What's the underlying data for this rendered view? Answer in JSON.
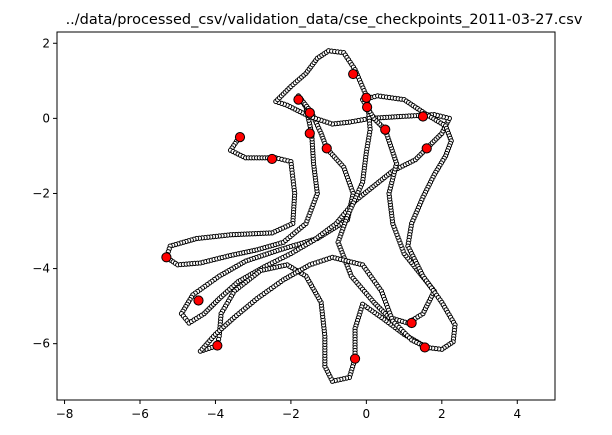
{
  "chart_data": {
    "type": "scatter",
    "title": "../data/processed_csv/validation_data/cse_checkpoints_2011-03-27.csv",
    "xlabel": "",
    "ylabel": "",
    "xlim": [
      -8.2,
      5.0
    ],
    "ylim": [
      -7.5,
      2.3
    ],
    "x_ticks": [
      -8,
      -6,
      -4,
      -2,
      0,
      2,
      4
    ],
    "y_ticks": [
      2,
      0,
      -2,
      -4,
      -6
    ],
    "grid": false,
    "colors": {
      "track_fill": "#ffffff",
      "track_edge": "#000000",
      "checkpoint_fill": "#ff0000",
      "checkpoint_edge": "#000000"
    },
    "track_waypoints": [
      [
        -3.4,
        -0.55
      ],
      [
        -3.6,
        -0.85
      ],
      [
        -3.2,
        -1.05
      ],
      [
        -2.4,
        -1.05
      ],
      [
        -2.0,
        -1.15
      ],
      [
        -1.9,
        -2.0
      ],
      [
        -1.95,
        -2.8
      ],
      [
        -2.5,
        -3.05
      ],
      [
        -3.6,
        -3.1
      ],
      [
        -4.5,
        -3.2
      ],
      [
        -5.2,
        -3.4
      ],
      [
        -5.3,
        -3.7
      ],
      [
        -5.0,
        -3.9
      ],
      [
        -4.4,
        -3.85
      ],
      [
        -3.6,
        -3.65
      ],
      [
        -2.9,
        -3.5
      ],
      [
        -2.2,
        -3.3
      ],
      [
        -1.6,
        -2.8
      ],
      [
        -1.3,
        -2.0
      ],
      [
        -1.4,
        -1.2
      ],
      [
        -1.45,
        -0.4
      ],
      [
        -1.6,
        0.3
      ],
      [
        -1.8,
        0.6
      ],
      [
        -1.45,
        0.15
      ],
      [
        -1.2,
        -0.4
      ],
      [
        -1.05,
        -0.8
      ],
      [
        -0.6,
        -1.3
      ],
      [
        -0.35,
        -2.0
      ],
      [
        -0.5,
        -2.7
      ],
      [
        -1.3,
        -3.2
      ],
      [
        -2.3,
        -3.5
      ],
      [
        -3.2,
        -3.8
      ],
      [
        -3.9,
        -4.2
      ],
      [
        -4.6,
        -4.7
      ],
      [
        -4.9,
        -5.2
      ],
      [
        -4.7,
        -5.45
      ],
      [
        -4.3,
        -5.2
      ],
      [
        -3.9,
        -4.8
      ],
      [
        -3.4,
        -4.35
      ],
      [
        -2.7,
        -3.95
      ],
      [
        -2.0,
        -3.6
      ],
      [
        -1.4,
        -3.25
      ],
      [
        -0.8,
        -2.8
      ],
      [
        -0.3,
        -2.2
      ],
      [
        0.2,
        -1.8
      ],
      [
        0.7,
        -1.4
      ],
      [
        1.3,
        -1.1
      ],
      [
        1.6,
        -0.8
      ],
      [
        2.0,
        -0.4
      ],
      [
        2.2,
        0.0
      ],
      [
        1.8,
        0.1
      ],
      [
        0.9,
        0.05
      ],
      [
        0.1,
        0.0
      ],
      [
        -0.45,
        -0.1
      ],
      [
        -0.9,
        -0.15
      ],
      [
        -1.5,
        0.05
      ],
      [
        -2.1,
        0.35
      ],
      [
        -2.4,
        0.45
      ],
      [
        -2.0,
        0.85
      ],
      [
        -1.6,
        1.2
      ],
      [
        -1.3,
        1.6
      ],
      [
        -1.0,
        1.8
      ],
      [
        -0.6,
        1.75
      ],
      [
        -0.3,
        1.3
      ],
      [
        0.0,
        0.6
      ],
      [
        0.05,
        0.3
      ],
      [
        0.1,
        -0.3
      ],
      [
        0.0,
        -0.9
      ],
      [
        -0.1,
        -1.7
      ],
      [
        -0.5,
        -2.6
      ],
      [
        -0.75,
        -3.3
      ],
      [
        -0.4,
        -4.2
      ],
      [
        0.2,
        -4.9
      ],
      [
        0.6,
        -5.3
      ],
      [
        1.1,
        -5.45
      ],
      [
        1.5,
        -5.2
      ],
      [
        1.8,
        -4.6
      ],
      [
        1.0,
        -3.6
      ],
      [
        0.7,
        -2.8
      ],
      [
        0.6,
        -2.0
      ],
      [
        0.8,
        -1.2
      ],
      [
        0.5,
        -0.3
      ],
      [
        0.2,
        0.0
      ],
      [
        -0.1,
        0.5
      ],
      [
        0.3,
        0.6
      ],
      [
        1.0,
        0.5
      ],
      [
        1.6,
        0.1
      ],
      [
        2.1,
        -0.2
      ],
      [
        2.25,
        -0.6
      ],
      [
        2.1,
        -1.0
      ],
      [
        1.8,
        -1.5
      ],
      [
        1.5,
        -2.1
      ],
      [
        1.2,
        -2.8
      ],
      [
        1.1,
        -3.4
      ],
      [
        1.5,
        -4.2
      ],
      [
        2.0,
        -4.9
      ],
      [
        2.35,
        -5.5
      ],
      [
        2.3,
        -5.95
      ],
      [
        2.0,
        -6.15
      ],
      [
        1.6,
        -6.1
      ],
      [
        1.0,
        -5.75
      ],
      [
        0.4,
        -5.3
      ],
      [
        -0.1,
        -4.95
      ],
      [
        -0.3,
        -5.6
      ],
      [
        -0.3,
        -6.4
      ],
      [
        -0.45,
        -6.9
      ],
      [
        -0.9,
        -7.0
      ],
      [
        -1.1,
        -6.6
      ],
      [
        -1.1,
        -5.8
      ],
      [
        -1.2,
        -4.9
      ],
      [
        -1.6,
        -4.2
      ],
      [
        -2.1,
        -3.9
      ],
      [
        -2.8,
        -4.05
      ],
      [
        -3.5,
        -4.6
      ],
      [
        -3.85,
        -5.2
      ],
      [
        -3.9,
        -5.8
      ],
      [
        -3.95,
        -6.05
      ],
      [
        -4.4,
        -6.2
      ],
      [
        -4.0,
        -5.75
      ],
      [
        -3.5,
        -5.3
      ],
      [
        -2.9,
        -4.8
      ],
      [
        -2.2,
        -4.3
      ],
      [
        -1.5,
        -3.9
      ],
      [
        -0.9,
        -3.7
      ],
      [
        -0.1,
        -3.9
      ],
      [
        0.4,
        -4.6
      ],
      [
        0.7,
        -5.4
      ],
      [
        1.2,
        -5.9
      ],
      [
        1.6,
        -6.1
      ]
    ],
    "checkpoints": [
      [
        -3.35,
        -0.5
      ],
      [
        -2.5,
        -1.08
      ],
      [
        -1.8,
        0.5
      ],
      [
        -1.5,
        0.15
      ],
      [
        -1.5,
        -0.4
      ],
      [
        -1.05,
        -0.8
      ],
      [
        -0.35,
        1.18
      ],
      [
        0.0,
        0.55
      ],
      [
        0.02,
        0.3
      ],
      [
        0.5,
        -0.3
      ],
      [
        1.5,
        0.05
      ],
      [
        1.6,
        -0.8
      ],
      [
        -5.3,
        -3.7
      ],
      [
        -4.45,
        -4.85
      ],
      [
        -3.95,
        -6.05
      ],
      [
        -0.3,
        -6.4
      ],
      [
        1.2,
        -5.45
      ],
      [
        1.55,
        -6.1
      ]
    ]
  }
}
